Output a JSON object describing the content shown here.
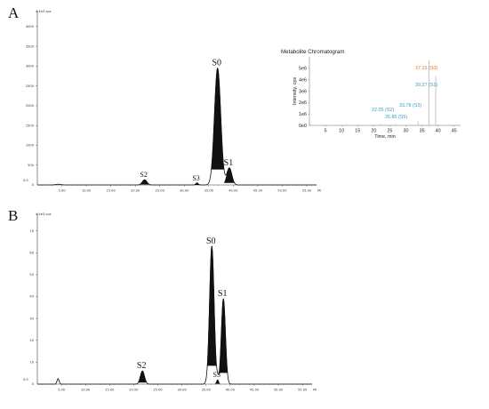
{
  "panel_labels": [
    "A",
    "B"
  ],
  "colors": {
    "trace": "#111111",
    "annot_blue": "#3a9bc0",
    "annot_orange": "#e07a2e",
    "inset_line": "#bfbfbf"
  },
  "chart_data": [
    {
      "type": "line",
      "panel": "A",
      "ylabel": "4.4e3 cps",
      "x_ticks": [
        "5.00",
        "10.00",
        "15.00",
        "20.00",
        "25.00",
        "30.00",
        "35.00",
        "40.00",
        "45.00",
        "50.00",
        "55.00"
      ],
      "x_unit": "Mi",
      "y_ticks": [
        "500",
        "1000",
        "1500",
        "2000",
        "2500",
        "3000",
        "3500",
        "4000"
      ],
      "y_zero_label": "0",
      "y_max_tick": "4.4e3",
      "xlim": [
        0,
        57
      ],
      "ylim": [
        0,
        4400
      ],
      "baseline_marker": "0.0",
      "peaks": [
        {
          "label": "S2",
          "x": 21.9,
          "y": 130,
          "w": 0.55
        },
        {
          "label": "S3",
          "x": 32.6,
          "y": 50,
          "w": 0.3
        },
        {
          "label": "S0",
          "x": 36.8,
          "y": 2950,
          "w": 0.75
        },
        {
          "label": "S1",
          "x": 39.2,
          "y": 430,
          "w": 0.6
        }
      ],
      "minor_bumps": [
        {
          "x": 4.3,
          "y": 18,
          "w": 0.6
        }
      ],
      "inset": {
        "title": "Metabolite Chromatogram",
        "xlabel": "Time, min",
        "ylabel": "Intensity, cps",
        "x_ticks": [
          "5",
          "10",
          "15",
          "20",
          "25",
          "30",
          "35",
          "40",
          "45"
        ],
        "y_ticks": [
          "0e0",
          "1e6",
          "2e6",
          "3e6",
          "4e6",
          "5e6"
        ],
        "xlim": [
          0,
          47
        ],
        "ylim": [
          0,
          6000000
        ],
        "lines": [
          {
            "x": 22.05,
            "y": 150000
          },
          {
            "x": 26.85,
            "y": 120000
          },
          {
            "x": 33.78,
            "y": 350000
          },
          {
            "x": 37.15,
            "y": 5700000
          },
          {
            "x": 39.27,
            "y": 4300000
          }
        ],
        "annotations": [
          {
            "text": "37.15 (S0)",
            "color": "orange"
          },
          {
            "text": "39.27 (S1)",
            "color": "blue"
          },
          {
            "text": "33.78 (S3)",
            "color": "blue"
          },
          {
            "text": "22.05 (S2)",
            "color": "blue"
          },
          {
            "text": "26.85 (S5)",
            "color": "blue"
          }
        ]
      }
    },
    {
      "type": "line",
      "panel": "B",
      "ylabel": "4.4e3 cps",
      "x_ticks": [
        "5.00",
        "10.00",
        "15.00",
        "20.00",
        "25.00",
        "30.00",
        "35.00",
        "40.00",
        "45.00",
        "50.00",
        "55.00"
      ],
      "x_unit": "Mi",
      "y_ticks": [
        "10",
        "20",
        "30",
        "40",
        "50",
        "60",
        "70"
      ],
      "y_zero_label": "0",
      "xlim": [
        0,
        57
      ],
      "ylim": [
        0,
        78
      ],
      "baseline_marker": "0.0",
      "peaks": [
        {
          "label": "S2",
          "x": 21.8,
          "y": 6,
          "w": 0.5
        },
        {
          "label": "S0",
          "x": 36.2,
          "y": 63,
          "w": 0.55
        },
        {
          "label": "S3",
          "x": 37.4,
          "y": 2,
          "w": 0.25
        },
        {
          "label": "S1",
          "x": 38.6,
          "y": 39,
          "w": 0.5
        }
      ],
      "minor_bumps": [
        {
          "x": 4.3,
          "y": 2.5,
          "w": 0.25
        }
      ]
    }
  ]
}
